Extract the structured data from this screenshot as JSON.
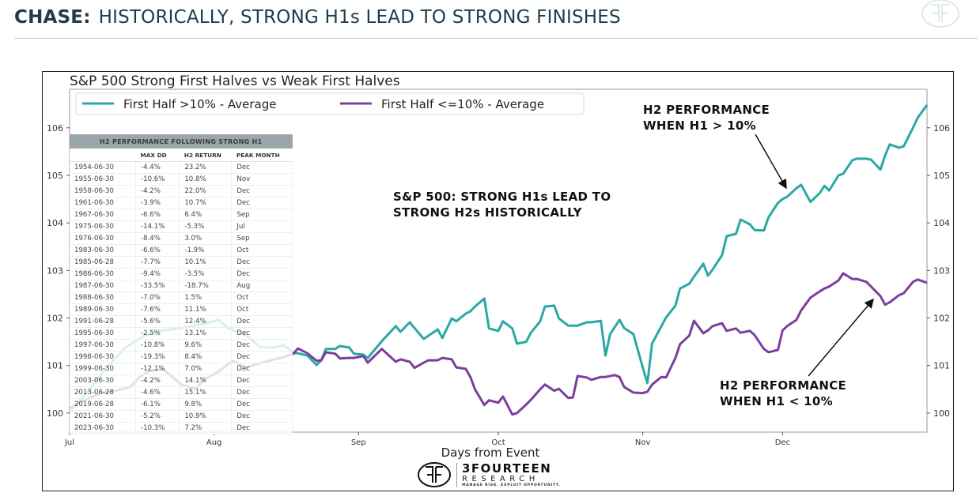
{
  "header": {
    "brand": "CHASE:",
    "title": "HISTORICALLY, STRONG H1s LEAD TO STRONG FINISHES"
  },
  "logo": {
    "name": "3FOURTEEN",
    "sub": "RESEARCH",
    "tagline": "MANAGE RISK. EXPLOIT OPPORTUNITY."
  },
  "annotations": {
    "center": [
      "S&P 500:  STRONG H1s LEAD TO",
      "STRONG H2s HISTORICALLY"
    ],
    "upper": [
      "H2 PERFORMANCE",
      "WHEN H1 > 10%"
    ],
    "lower": [
      "H2 PERFORMANCE",
      "WHEN H1 < 10%"
    ]
  },
  "table": {
    "title": "H2 PERFORMANCE FOLLOWING STRONG H1",
    "columns": [
      "",
      "MAX DD",
      "H2 RETURN",
      "PEAK MONTH"
    ],
    "rows": [
      [
        "1954-06-30",
        "-4.4%",
        "23.2%",
        "Dec"
      ],
      [
        "1955-06-30",
        "-10.6%",
        "10.8%",
        "Nov"
      ],
      [
        "1958-06-30",
        "-4.2%",
        "22.0%",
        "Dec"
      ],
      [
        "1961-06-30",
        "-3.9%",
        "10.7%",
        "Dec"
      ],
      [
        "1967-06-30",
        "-6.6%",
        "6.4%",
        "Sep"
      ],
      [
        "1975-06-30",
        "-14.1%",
        "-5.3%",
        "Jul"
      ],
      [
        "1976-06-30",
        "-8.4%",
        "3.0%",
        "Sep"
      ],
      [
        "1983-06-30",
        "-6.6%",
        "-1.9%",
        "Oct"
      ],
      [
        "1985-06-28",
        "-7.7%",
        "10.1%",
        "Dec"
      ],
      [
        "1986-06-30",
        "-9.4%",
        "-3.5%",
        "Dec"
      ],
      [
        "1987-06-30",
        "-33.5%",
        "-18.7%",
        "Aug"
      ],
      [
        "1988-06-30",
        "-7.0%",
        "1.5%",
        "Oct"
      ],
      [
        "1989-06-30",
        "-7.6%",
        "11.1%",
        "Oct"
      ],
      [
        "1991-06-28",
        "-5.6%",
        "12.4%",
        "Dec"
      ],
      [
        "1995-06-30",
        "-2.5%",
        "13.1%",
        "Dec"
      ],
      [
        "1997-06-30",
        "-10.8%",
        "9.6%",
        "Dec"
      ],
      [
        "1998-06-30",
        "-19.3%",
        "8.4%",
        "Dec"
      ],
      [
        "1999-06-30",
        "-12.1%",
        "7.0%",
        "Dec"
      ],
      [
        "2003-06-30",
        "-4.2%",
        "14.1%",
        "Dec"
      ],
      [
        "2013-06-28",
        "-4.6%",
        "15.1%",
        "Dec"
      ],
      [
        "2019-06-28",
        "-6.1%",
        "9.8%",
        "Dec"
      ],
      [
        "2021-06-30",
        "-5.2%",
        "10.9%",
        "Dec"
      ],
      [
        "2023-06-30",
        "-10.3%",
        "7.2%",
        "Dec"
      ]
    ]
  },
  "chart_data": {
    "type": "line",
    "title": "S&P 500 Strong First Halves vs Weak First Halves",
    "xlabel": "Days from Event",
    "ylabel": "",
    "xlim": [
      0,
      184
    ],
    "ylim": [
      99.6,
      106.81
    ],
    "x_ticks": [
      {
        "value": 0,
        "label": "Jul"
      },
      {
        "value": 31,
        "label": "Aug"
      },
      {
        "value": 62,
        "label": "Sep"
      },
      {
        "value": 92,
        "label": "Oct"
      },
      {
        "value": 123,
        "label": "Nov"
      },
      {
        "value": 153,
        "label": "Dec"
      }
    ],
    "y_ticks": [
      100,
      101,
      102,
      103,
      104,
      105,
      106
    ],
    "grid": false,
    "legend_position": "top-left",
    "series": [
      {
        "name": "First Half >10% - Average",
        "color": "#2aa9a4",
        "x": [
          0,
          4,
          8,
          12,
          16,
          20,
          24,
          29,
          32,
          34,
          38,
          41,
          44,
          46,
          48,
          49,
          51,
          53,
          54,
          55,
          57,
          58,
          60,
          61,
          63,
          64,
          67,
          70,
          71,
          73,
          74,
          76,
          79,
          80,
          82,
          83,
          85,
          86,
          87,
          89,
          90,
          92,
          93,
          95,
          96,
          98,
          99,
          101,
          102,
          104,
          105,
          107,
          109,
          111,
          112,
          114,
          115,
          116,
          118,
          119,
          121,
          123,
          124,
          125,
          127,
          128,
          130,
          131,
          133,
          134,
          136,
          137,
          138,
          140,
          141,
          143,
          144,
          146,
          147,
          149,
          150,
          152,
          153,
          154,
          156,
          157,
          159,
          161,
          162,
          163,
          165,
          166,
          168,
          169,
          171,
          172,
          174,
          175,
          176,
          178,
          179,
          181,
          182,
          184
        ],
        "y": [
          100.03,
          100.47,
          100.96,
          101.38,
          101.63,
          101.74,
          101.79,
          101.88,
          101.96,
          101.79,
          101.63,
          101.38,
          101.38,
          101.43,
          101.26,
          101.26,
          101.21,
          101.01,
          101.11,
          101.35,
          101.35,
          101.41,
          101.38,
          101.25,
          101.23,
          101.16,
          101.51,
          101.83,
          101.71,
          101.91,
          101.79,
          101.56,
          101.76,
          101.58,
          101.99,
          101.93,
          102.09,
          102.14,
          102.24,
          102.41,
          101.78,
          101.73,
          101.93,
          101.78,
          101.46,
          101.5,
          101.69,
          101.93,
          102.24,
          102.26,
          101.99,
          101.84,
          101.84,
          101.91,
          101.91,
          101.94,
          101.21,
          101.66,
          101.96,
          101.79,
          101.66,
          100.96,
          100.63,
          101.46,
          101.83,
          102.01,
          102.26,
          102.62,
          102.72,
          102.87,
          103.14,
          102.89,
          103.02,
          103.32,
          103.72,
          103.77,
          104.07,
          103.97,
          103.85,
          103.84,
          104.12,
          104.42,
          104.5,
          104.55,
          104.73,
          104.8,
          104.44,
          104.63,
          104.78,
          104.68,
          105.0,
          105.03,
          105.32,
          105.35,
          105.35,
          105.33,
          105.12,
          105.42,
          105.65,
          105.58,
          105.61,
          106.0,
          106.21,
          106.48
        ]
      },
      {
        "name": "First Half <=10% - Average",
        "color": "#7b3f9e",
        "x": [
          0,
          3,
          7,
          10,
          13,
          15,
          17,
          20,
          24,
          27,
          29,
          32,
          35,
          38,
          42,
          46,
          48,
          49,
          51,
          53,
          54,
          55,
          57,
          58,
          60,
          61,
          63,
          64,
          67,
          68,
          70,
          71,
          73,
          74,
          76,
          77,
          79,
          80,
          82,
          83,
          85,
          86,
          87,
          89,
          90,
          92,
          93,
          95,
          96,
          98,
          99,
          101,
          102,
          104,
          105,
          107,
          108,
          109,
          111,
          112,
          114,
          115,
          117,
          118,
          119,
          121,
          123,
          124,
          125,
          127,
          128,
          130,
          131,
          133,
          134,
          136,
          137,
          138,
          140,
          141,
          143,
          144,
          146,
          147,
          149,
          150,
          152,
          153,
          154,
          156,
          157,
          159,
          161,
          162,
          163,
          165,
          166,
          168,
          169,
          171,
          172,
          174,
          175,
          176,
          178,
          179,
          181,
          182,
          184
        ],
        "y": [
          100.1,
          100.27,
          100.43,
          100.47,
          100.55,
          100.76,
          100.88,
          100.93,
          100.6,
          100.51,
          100.71,
          100.88,
          101.1,
          100.96,
          101.08,
          101.18,
          101.25,
          101.36,
          101.26,
          101.1,
          101.11,
          101.28,
          101.25,
          101.15,
          101.16,
          101.16,
          101.2,
          101.06,
          101.35,
          101.26,
          101.08,
          101.13,
          101.08,
          100.95,
          101.06,
          101.11,
          101.11,
          101.16,
          101.13,
          100.96,
          100.93,
          100.76,
          100.5,
          100.17,
          100.27,
          100.22,
          100.35,
          99.97,
          100.0,
          100.18,
          100.28,
          100.5,
          100.6,
          100.47,
          100.51,
          100.32,
          100.33,
          100.78,
          100.75,
          100.7,
          100.76,
          100.76,
          100.8,
          100.76,
          100.55,
          100.43,
          100.42,
          100.45,
          100.6,
          100.76,
          100.75,
          101.16,
          101.45,
          101.63,
          101.94,
          101.68,
          101.74,
          101.83,
          101.89,
          101.73,
          101.78,
          101.69,
          101.73,
          101.64,
          101.35,
          101.28,
          101.33,
          101.74,
          101.83,
          101.96,
          102.16,
          102.43,
          102.56,
          102.62,
          102.66,
          102.79,
          102.94,
          102.82,
          102.82,
          102.76,
          102.66,
          102.46,
          102.28,
          102.33,
          102.48,
          102.52,
          102.76,
          102.81,
          102.74
        ]
      }
    ]
  }
}
